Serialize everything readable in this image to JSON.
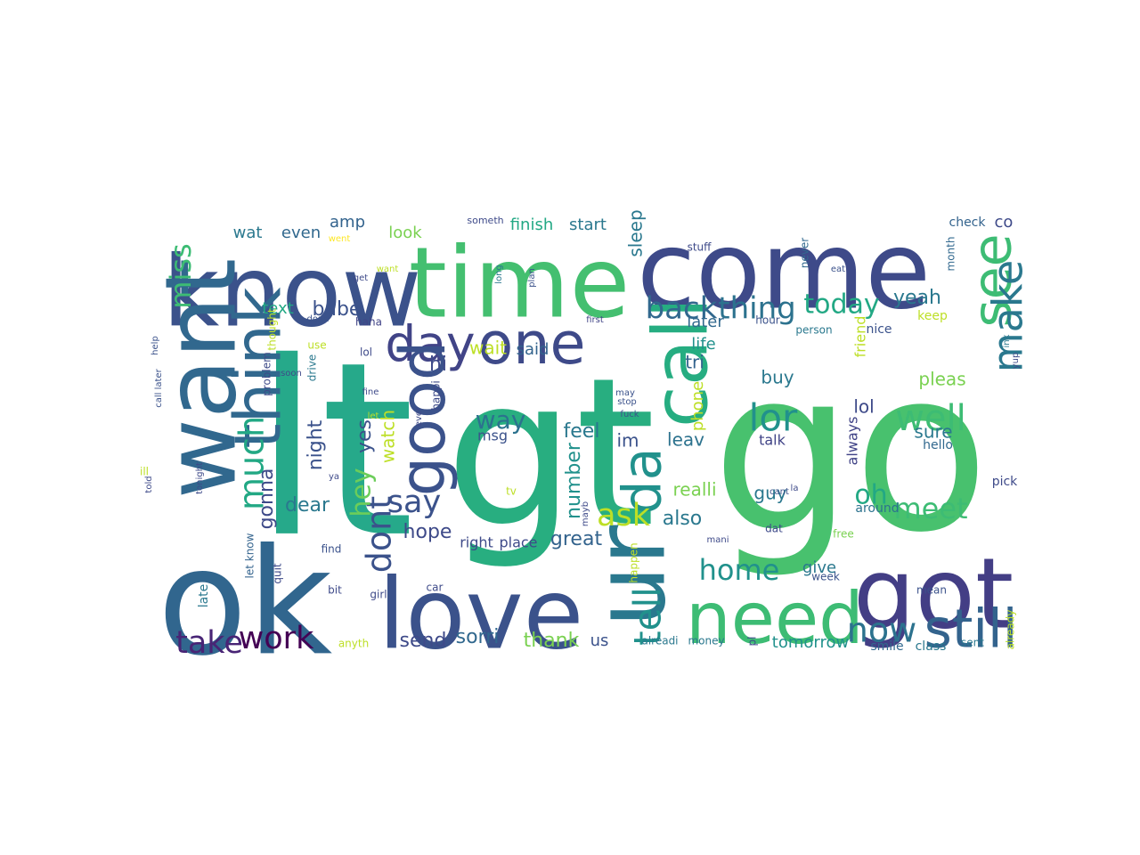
{
  "wordcloud": {
    "colors": {
      "dark_purple": "#482475",
      "indigo": "#3e4a89",
      "steel_blue": "#33638d",
      "blue_teal": "#2a788e",
      "teal": "#21918c",
      "sea_green": "#22a884",
      "green": "#44bf70",
      "light_green": "#7ad151",
      "lime": "#bddf26",
      "yellow": "#fde725"
    },
    "words": [
      {
        "text": "go",
        "color": "#48c16e"
      },
      {
        "text": "lt",
        "color": "#26a98a"
      },
      {
        "text": "gt",
        "color": "#28ae80"
      },
      {
        "text": "ok",
        "color": "#31668e"
      },
      {
        "text": "come",
        "color": "#3e4a89"
      },
      {
        "text": "know",
        "color": "#3b528b"
      },
      {
        "text": "time",
        "color": "#44bf70"
      },
      {
        "text": "love",
        "color": "#3b528b"
      },
      {
        "text": "got",
        "color": "#433e85"
      },
      {
        "text": "want",
        "color": "#31688e"
      },
      {
        "text": "ur",
        "color": "#2a788e"
      },
      {
        "text": "need",
        "color": "#3dbc74"
      },
      {
        "text": "call",
        "color": "#26ad81"
      },
      {
        "text": "one",
        "color": "#3e4a89"
      },
      {
        "text": "day",
        "color": "#414487"
      },
      {
        "text": "good",
        "color": "#3b528b"
      },
      {
        "text": "think",
        "color": "#31688e"
      },
      {
        "text": "see",
        "color": "#3dbc74"
      },
      {
        "text": "still",
        "color": "#33638d"
      },
      {
        "text": "da",
        "color": "#21918c"
      },
      {
        "text": "back",
        "color": "#31688e"
      },
      {
        "text": "thing",
        "color": "#2c728e"
      },
      {
        "text": "today",
        "color": "#22a884"
      },
      {
        "text": "make",
        "color": "#2a788e"
      },
      {
        "text": "much",
        "color": "#22a884"
      },
      {
        "text": "home",
        "color": "#21918c"
      },
      {
        "text": "tell",
        "color": "#21918c"
      },
      {
        "text": "work",
        "color": "#440154"
      },
      {
        "text": "take",
        "color": "#482475"
      },
      {
        "text": "lor",
        "color": "#21918c"
      },
      {
        "text": "say",
        "color": "#3b528b"
      },
      {
        "text": "ask",
        "color": "#bddf26"
      },
      {
        "text": "meet",
        "color": "#3dbc74"
      },
      {
        "text": "now",
        "color": "#2c728e"
      },
      {
        "text": "oh",
        "color": "#22a884"
      },
      {
        "text": "well",
        "color": "#3dbc74"
      },
      {
        "text": "miss",
        "color": "#3dbc74"
      },
      {
        "text": "dont",
        "color": "#3b528b"
      },
      {
        "text": "hey",
        "color": "#6ccd5a"
      },
      {
        "text": "way",
        "color": "#2c728e"
      },
      {
        "text": "yeah",
        "color": "#2a788e"
      },
      {
        "text": "wat",
        "color": "#2a788e"
      },
      {
        "text": "even",
        "color": "#31688e"
      },
      {
        "text": "amp",
        "color": "#33638d"
      },
      {
        "text": "look",
        "color": "#7ad151"
      },
      {
        "text": "finish",
        "color": "#22a884"
      },
      {
        "text": "start",
        "color": "#2a788e"
      },
      {
        "text": "sleep",
        "color": "#2a788e"
      },
      {
        "text": "babe",
        "color": "#3b528b"
      },
      {
        "text": "text",
        "color": "#22a884"
      },
      {
        "text": "wait",
        "color": "#bddf26"
      },
      {
        "text": "said",
        "color": "#33638d"
      },
      {
        "text": "later",
        "color": "#31688e"
      },
      {
        "text": "life",
        "color": "#21918c"
      },
      {
        "text": "tri",
        "color": "#33638d"
      },
      {
        "text": "buy",
        "color": "#2a788e"
      },
      {
        "text": "friend",
        "color": "#bddf26"
      },
      {
        "text": "lol",
        "color": "#3e4a89"
      },
      {
        "text": "pleas",
        "color": "#7ad151"
      },
      {
        "text": "sure",
        "color": "#2a788e"
      },
      {
        "text": "hello",
        "color": "#31688e"
      },
      {
        "text": "night",
        "color": "#3b528b"
      },
      {
        "text": "hi",
        "color": "#3e4a89"
      },
      {
        "text": "msg",
        "color": "#3b528b"
      },
      {
        "text": "feel",
        "color": "#2a788e"
      },
      {
        "text": "number",
        "color": "#21918c"
      },
      {
        "text": "im",
        "color": "#3b528b"
      },
      {
        "text": "leav",
        "color": "#2c728e"
      },
      {
        "text": "yes",
        "color": "#3b528b"
      },
      {
        "text": "watch",
        "color": "#bddf26"
      },
      {
        "text": "gonna",
        "color": "#3e4a89"
      },
      {
        "text": "dear",
        "color": "#2a788e"
      },
      {
        "text": "hope",
        "color": "#3e4a89"
      },
      {
        "text": "great",
        "color": "#33638d"
      },
      {
        "text": "also",
        "color": "#2a788e"
      },
      {
        "text": "realli",
        "color": "#7ad151"
      },
      {
        "text": "guy",
        "color": "#2a788e"
      },
      {
        "text": "talk",
        "color": "#414487"
      },
      {
        "text": "right",
        "color": "#3e4a89"
      },
      {
        "text": "place",
        "color": "#3e4a89"
      },
      {
        "text": "give",
        "color": "#2a788e"
      },
      {
        "text": "send",
        "color": "#3e4a89"
      },
      {
        "text": "sorri",
        "color": "#31688e"
      },
      {
        "text": "thank",
        "color": "#7ad151"
      },
      {
        "text": "us",
        "color": "#3b528b"
      },
      {
        "text": "tomorrow",
        "color": "#21918c"
      },
      {
        "text": "smile",
        "color": "#31688e"
      },
      {
        "text": "class",
        "color": "#2a788e"
      },
      {
        "text": "keep",
        "color": "#bddf26"
      },
      {
        "text": "nice",
        "color": "#3b528b"
      },
      {
        "text": "check",
        "color": "#33638d"
      },
      {
        "text": "co",
        "color": "#3e4a89"
      },
      {
        "text": "phone",
        "color": "#bddf26"
      },
      {
        "text": "always",
        "color": "#414487"
      },
      {
        "text": "around",
        "color": "#2c728e"
      },
      {
        "text": "pick",
        "color": "#3e4a89"
      },
      {
        "text": "hour",
        "color": "#3b528b"
      },
      {
        "text": "person",
        "color": "#2a788e"
      },
      {
        "text": "stuff",
        "color": "#3e4a89"
      },
      {
        "text": "never",
        "color": "#31688e"
      },
      {
        "text": "month",
        "color": "#31688e"
      },
      {
        "text": "first",
        "color": "#414487"
      },
      {
        "text": "haha",
        "color": "#414487"
      },
      {
        "text": "lol",
        "color": "#3e4a89"
      },
      {
        "text": "use",
        "color": "#bddf26"
      },
      {
        "text": "thought",
        "color": "#bddf26"
      },
      {
        "text": "problem",
        "color": "#3e4a89"
      },
      {
        "text": "drive",
        "color": "#2a788e"
      },
      {
        "text": "soon",
        "color": "#3e4a89"
      },
      {
        "text": "done",
        "color": "#3b528b"
      },
      {
        "text": "get",
        "color": "#3e4a89"
      },
      {
        "text": "went",
        "color": "#fde725"
      },
      {
        "text": "someth",
        "color": "#3e4a89"
      },
      {
        "text": "long",
        "color": "#2a788e"
      },
      {
        "text": "plan",
        "color": "#3b528b"
      },
      {
        "text": "happi",
        "color": "#3e4a89"
      },
      {
        "text": "fine",
        "color": "#3e4a89"
      },
      {
        "text": "let",
        "color": "#bddf26"
      },
      {
        "text": "call later",
        "color": "#3b528b"
      },
      {
        "text": "help",
        "color": "#3b528b"
      },
      {
        "text": "tonight",
        "color": "#3e4a89"
      },
      {
        "text": "told",
        "color": "#3e4a89"
      },
      {
        "text": "ill",
        "color": "#bddf26"
      },
      {
        "text": "late",
        "color": "#2a788e"
      },
      {
        "text": "let know",
        "color": "#33638d"
      },
      {
        "text": "find",
        "color": "#3b528b"
      },
      {
        "text": "bit",
        "color": "#3e4a89"
      },
      {
        "text": "girl",
        "color": "#3e4a89"
      },
      {
        "text": "quit",
        "color": "#3e4a89"
      },
      {
        "text": "car",
        "color": "#3e4a89"
      },
      {
        "text": "anyth",
        "color": "#bddf26"
      },
      {
        "text": "alreadi",
        "color": "#2a788e"
      },
      {
        "text": "money",
        "color": "#2a788e"
      },
      {
        "text": "pl",
        "color": "#3e4a89"
      },
      {
        "text": "happen",
        "color": "#bddf26"
      },
      {
        "text": "week",
        "color": "#3b528b"
      },
      {
        "text": "mean",
        "color": "#3b528b"
      },
      {
        "text": "sent",
        "color": "#2a788e"
      },
      {
        "text": "already",
        "color": "#bddf26"
      },
      {
        "text": "free",
        "color": "#7ad151"
      },
      {
        "text": "dat",
        "color": "#3e4a89"
      },
      {
        "text": "cant",
        "color": "#3b528b"
      },
      {
        "text": "fuck",
        "color": "#3b528b"
      },
      {
        "text": "stop",
        "color": "#3b528b"
      },
      {
        "text": "may",
        "color": "#3b528b"
      },
      {
        "text": "eat",
        "color": "#3b528b"
      },
      {
        "text": "tv",
        "color": "#bddf26"
      },
      {
        "text": "want",
        "color": "#bddf26"
      },
      {
        "text": "ya",
        "color": "#3e4a89"
      },
      {
        "text": "yup",
        "color": "#3e4a89"
      },
      {
        "text": "ink",
        "color": "#2a788e"
      },
      {
        "text": "la",
        "color": "#3e4a89"
      },
      {
        "text": "mayb",
        "color": "#3e4a89"
      },
      {
        "text": "mani",
        "color": "#3e4a89"
      },
      {
        "text": "ever",
        "color": "#3e4a89"
      }
    ]
  }
}
